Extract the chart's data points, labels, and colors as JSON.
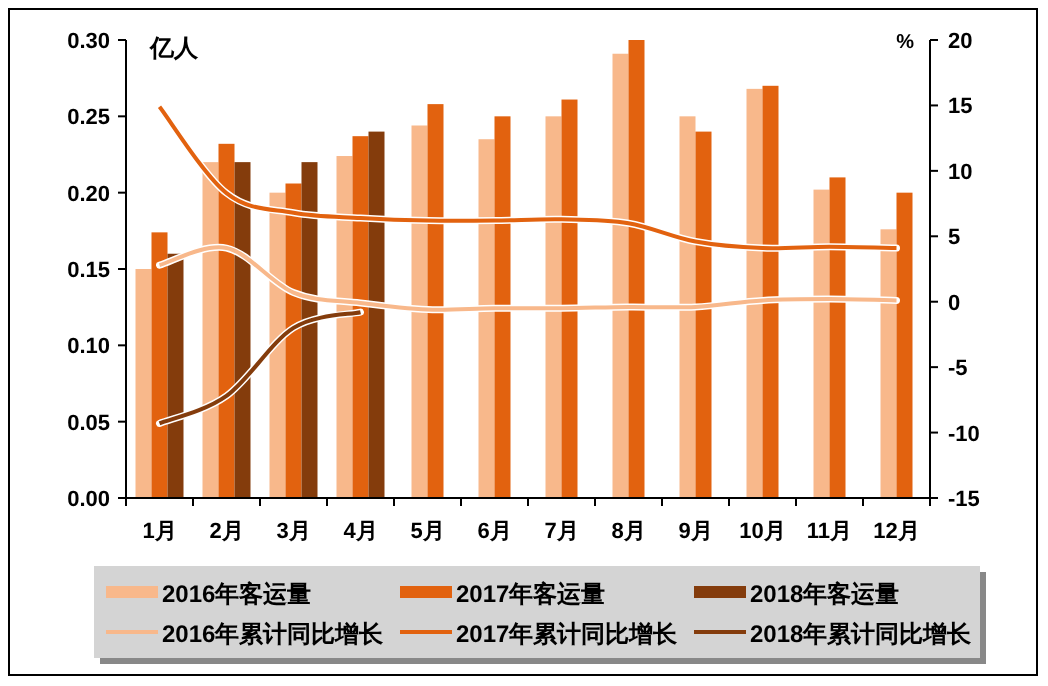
{
  "chart_data": {
    "type": "bar",
    "ylabel": "亿人",
    "y2label": "%",
    "categories": [
      "1月",
      "2月",
      "3月",
      "4月",
      "5月",
      "6月",
      "7月",
      "8月",
      "9月",
      "10月",
      "11月",
      "12月"
    ],
    "ylim": [
      0,
      0.3
    ],
    "yticks": [
      {
        "value": 0,
        "label": "0.00"
      },
      {
        "value": 0.05,
        "label": "0.05"
      },
      {
        "value": 0.1,
        "label": "0.10"
      },
      {
        "value": 0.15,
        "label": "0.15"
      },
      {
        "value": 0.2,
        "label": "0.20"
      },
      {
        "value": 0.25,
        "label": "0.25"
      },
      {
        "value": 0.3,
        "label": "0.30"
      }
    ],
    "y2lim": [
      -15,
      20
    ],
    "y2ticks": [
      -15,
      -10,
      -5,
      0,
      5,
      10,
      15,
      20
    ],
    "grid": false,
    "legend": "bottom",
    "marker": "none",
    "series": [
      {
        "name": "2016年客运量",
        "color": "#f8b88b",
        "values": [
          0.15,
          0.22,
          0.2,
          0.224,
          0.244,
          0.235,
          0.25,
          0.291,
          0.25,
          0.268,
          0.202,
          0.176
        ]
      },
      {
        "name": "2017年客运量",
        "color": "#e2620f",
        "values": [
          0.174,
          0.232,
          0.206,
          0.237,
          0.258,
          0.25,
          0.261,
          0.3,
          0.24,
          0.27,
          0.21,
          0.2
        ]
      },
      {
        "name": "2018年客运量",
        "color": "#843c0c",
        "values": [
          0.16,
          0.22,
          0.22,
          0.24,
          null,
          null,
          null,
          null,
          null,
          null,
          null,
          null
        ]
      },
      {
        "name": "2016年累计同比增长",
        "type": "line",
        "axis": "y2",
        "color": "#f8b88b",
        "values": [
          2.8,
          4.1,
          0.7,
          -0.1,
          -0.6,
          -0.5,
          -0.5,
          -0.4,
          -0.4,
          0.1,
          0.2,
          0.1
        ]
      },
      {
        "name": "2017年累计同比增长",
        "type": "line",
        "axis": "y2",
        "color": "#e2620f",
        "values": [
          14.9,
          8.3,
          6.8,
          6.4,
          6.2,
          6.2,
          6.3,
          6.0,
          4.6,
          4.1,
          4.2,
          4.1
        ]
      },
      {
        "name": "2018年累计同比增长",
        "type": "line",
        "axis": "y2",
        "color": "#843c0c",
        "values": [
          -9.3,
          -7.2,
          -2.0,
          -0.8,
          null,
          null,
          null,
          null,
          null,
          null,
          null,
          null
        ]
      }
    ]
  }
}
